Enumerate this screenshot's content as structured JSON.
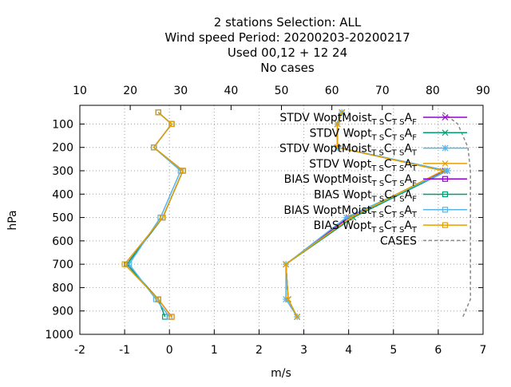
{
  "title_lines": [
    "2 stations Selection: ALL",
    "Wind speed  Period: 20200203-20200217",
    "Used  00,12  + 12 24",
    "No cases"
  ],
  "chart_data": {
    "type": "line",
    "xlabel": "m/s",
    "ylabel": "hPa",
    "xlim": [
      -2,
      7
    ],
    "ylim": [
      1000,
      20
    ],
    "x2lim": [
      10,
      90
    ],
    "x_ticks": [
      -2,
      -1,
      0,
      1,
      2,
      3,
      4,
      5,
      6,
      7
    ],
    "x2_ticks": [
      10,
      20,
      30,
      40,
      50,
      60,
      70,
      80,
      90
    ],
    "y_ticks": [
      100,
      200,
      300,
      400,
      500,
      600,
      700,
      800,
      900,
      1000
    ],
    "grid": true,
    "legend_position": "top-right",
    "levels": [
      50,
      100,
      200,
      300,
      500,
      700,
      850,
      925
    ],
    "series": [
      {
        "name": "STDV WoptMoist",
        "label_main": "STDV WoptMoist",
        "sub1": "T S",
        "mid": "C",
        "sub2": "T S",
        "tail": "A",
        "sub3": "F",
        "color": "#9400d3",
        "marker": "x",
        "dash": "",
        "x": [
          3.85,
          3.75,
          3.75,
          6.15,
          4.0,
          2.6,
          2.65,
          2.85
        ]
      },
      {
        "name": "STDV Wopt",
        "label_main": "STDV Wopt",
        "sub1": "T S",
        "mid": "C",
        "sub2": "T S",
        "tail": "A",
        "sub3": "F",
        "color": "#009e73",
        "marker": "x",
        "dash": "",
        "x": [
          3.85,
          3.75,
          3.75,
          6.2,
          4.1,
          2.6,
          2.65,
          2.85
        ]
      },
      {
        "name": "STDV WoptMoist",
        "label_main": "STDV WoptMoist",
        "sub1": "T S",
        "mid": "C",
        "sub2": "T S",
        "tail": "A",
        "sub3": "T",
        "color": "#56b4e9",
        "marker": "star",
        "dash": "",
        "x": [
          3.85,
          3.75,
          3.75,
          6.2,
          3.95,
          2.6,
          2.6,
          2.85
        ]
      },
      {
        "name": "STDV Wopt",
        "label_main": "STDV Wopt",
        "sub1": "T S",
        "mid": "C",
        "sub2": "T S",
        "tail": "A",
        "sub3": "T",
        "color": "#e69f00",
        "marker": "x",
        "dash": "",
        "x": [
          3.85,
          3.75,
          3.75,
          6.1,
          4.05,
          2.6,
          2.65,
          2.85
        ]
      },
      {
        "name": "BIAS WoptMoist",
        "label_main": "BIAS WoptMoist",
        "sub1": "T S",
        "mid": "C",
        "sub2": "T S",
        "tail": "A",
        "sub3": "F",
        "color": "#9400d3",
        "marker": "square",
        "dash": "",
        "x": [
          -0.25,
          0.05,
          -0.35,
          0.3,
          -0.15,
          -0.95,
          -0.25,
          0.05
        ]
      },
      {
        "name": "BIAS Wopt",
        "label_main": "BIAS Wopt",
        "sub1": "T S",
        "mid": "C",
        "sub2": "T S",
        "tail": "A",
        "sub3": "F",
        "color": "#009e73",
        "marker": "square",
        "dash": "",
        "x": [
          -0.25,
          0.05,
          -0.35,
          0.3,
          -0.15,
          -0.95,
          -0.25,
          -0.1
        ]
      },
      {
        "name": "BIAS WoptMoist",
        "label_main": "BIAS WoptMoist",
        "sub1": "T S",
        "mid": "C",
        "sub2": "T S",
        "tail": "A",
        "sub3": "T",
        "color": "#56b4e9",
        "marker": "square",
        "dash": "",
        "x": [
          -0.25,
          0.05,
          -0.35,
          0.25,
          -0.2,
          -0.9,
          -0.3,
          0.0
        ]
      },
      {
        "name": "BIAS Wopt",
        "label_main": "BIAS Wopt",
        "sub1": "T S",
        "mid": "C",
        "sub2": "T S",
        "tail": "A",
        "sub3": "T",
        "color": "#e69f00",
        "marker": "square",
        "dash": "",
        "x": [
          -0.25,
          0.05,
          -0.35,
          0.3,
          -0.15,
          -1.0,
          -0.25,
          0.05
        ]
      },
      {
        "name": "CASES",
        "label_main": "CASES",
        "color": "#888888",
        "marker": "none",
        "dash": "4,3",
        "axis": "x2",
        "x": [
          82,
          85,
          87,
          87.5,
          87.5,
          87.5,
          87.5,
          86
        ]
      }
    ]
  }
}
